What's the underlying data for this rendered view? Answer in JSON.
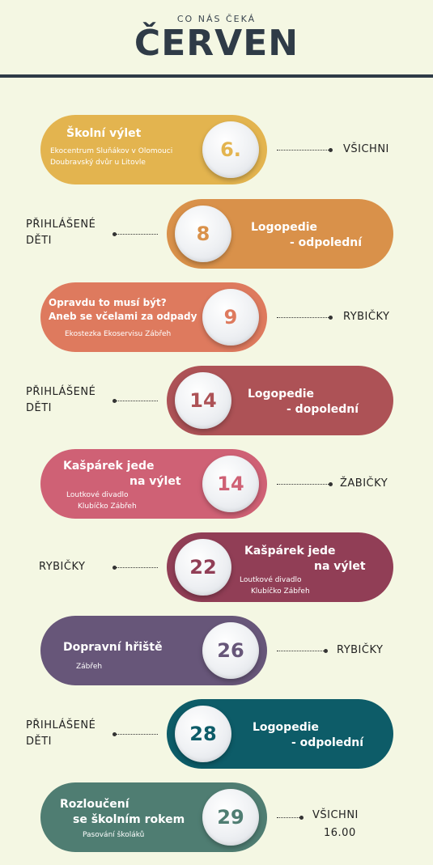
{
  "header": {
    "subtitle": "CO NÁS ČEKÁ",
    "title": "ČERVEN"
  },
  "events": [
    {
      "date": "6.",
      "title_lines": [
        "Školní výlet"
      ],
      "details": [
        "Ekocentrum Sluňákov v Olomouci",
        "Doubravský dvůr u Litovle"
      ],
      "audience": [
        "VŠICHNI"
      ],
      "color": "#e3b44f"
    },
    {
      "date": "8",
      "title_lines": [
        "Logopedie",
        "- odpolední"
      ],
      "details": [],
      "audience": [
        "PŘIHLÁŠENÉ",
        "DĚTI"
      ],
      "color": "#d9914a"
    },
    {
      "date": "9",
      "title_lines": [
        "Opravdu to musí být?",
        "Aneb se včelami za odpady"
      ],
      "details": [
        "Ekostezka Ekoservisu Zábřeh"
      ],
      "audience": [
        "RYBIČKY"
      ],
      "color": "#de7a5e"
    },
    {
      "date": "14",
      "title_lines": [
        "Logopedie",
        "- dopolední"
      ],
      "details": [],
      "audience": [
        "PŘIHLÁŠENÉ",
        "DĚTI"
      ],
      "color": "#ad5256"
    },
    {
      "date": "14",
      "title_lines": [
        "Kašpárek jede",
        "na výlet"
      ],
      "details": [
        "Loutkové divadlo",
        "Klubíčko Zábřeh"
      ],
      "audience": [
        "ŽABIČKY"
      ],
      "color": "#cf6175"
    },
    {
      "date": "22",
      "title_lines": [
        "Kašpárek jede",
        "na výlet"
      ],
      "details": [
        "Loutkové divadlo",
        "Klubíčko Zábřeh"
      ],
      "audience": [
        "RYBIČKY"
      ],
      "color": "#913e56"
    },
    {
      "date": "26",
      "title_lines": [
        "Dopravní hřiště"
      ],
      "details": [
        "Zábřeh"
      ],
      "audience": [
        "RYBIČKY"
      ],
      "color": "#675679"
    },
    {
      "date": "28",
      "title_lines": [
        "Logopedie",
        "- odpolední"
      ],
      "details": [],
      "audience": [
        "PŘIHLÁŠENÉ",
        "DĚTI"
      ],
      "color": "#0d5c68"
    },
    {
      "date": "29",
      "title_lines": [
        "Rozloučení",
        "se školním rokem"
      ],
      "details": [
        "Pasování školáků"
      ],
      "audience": [
        "VŠICHNI",
        "16.00"
      ],
      "color": "#4f7d72"
    }
  ]
}
